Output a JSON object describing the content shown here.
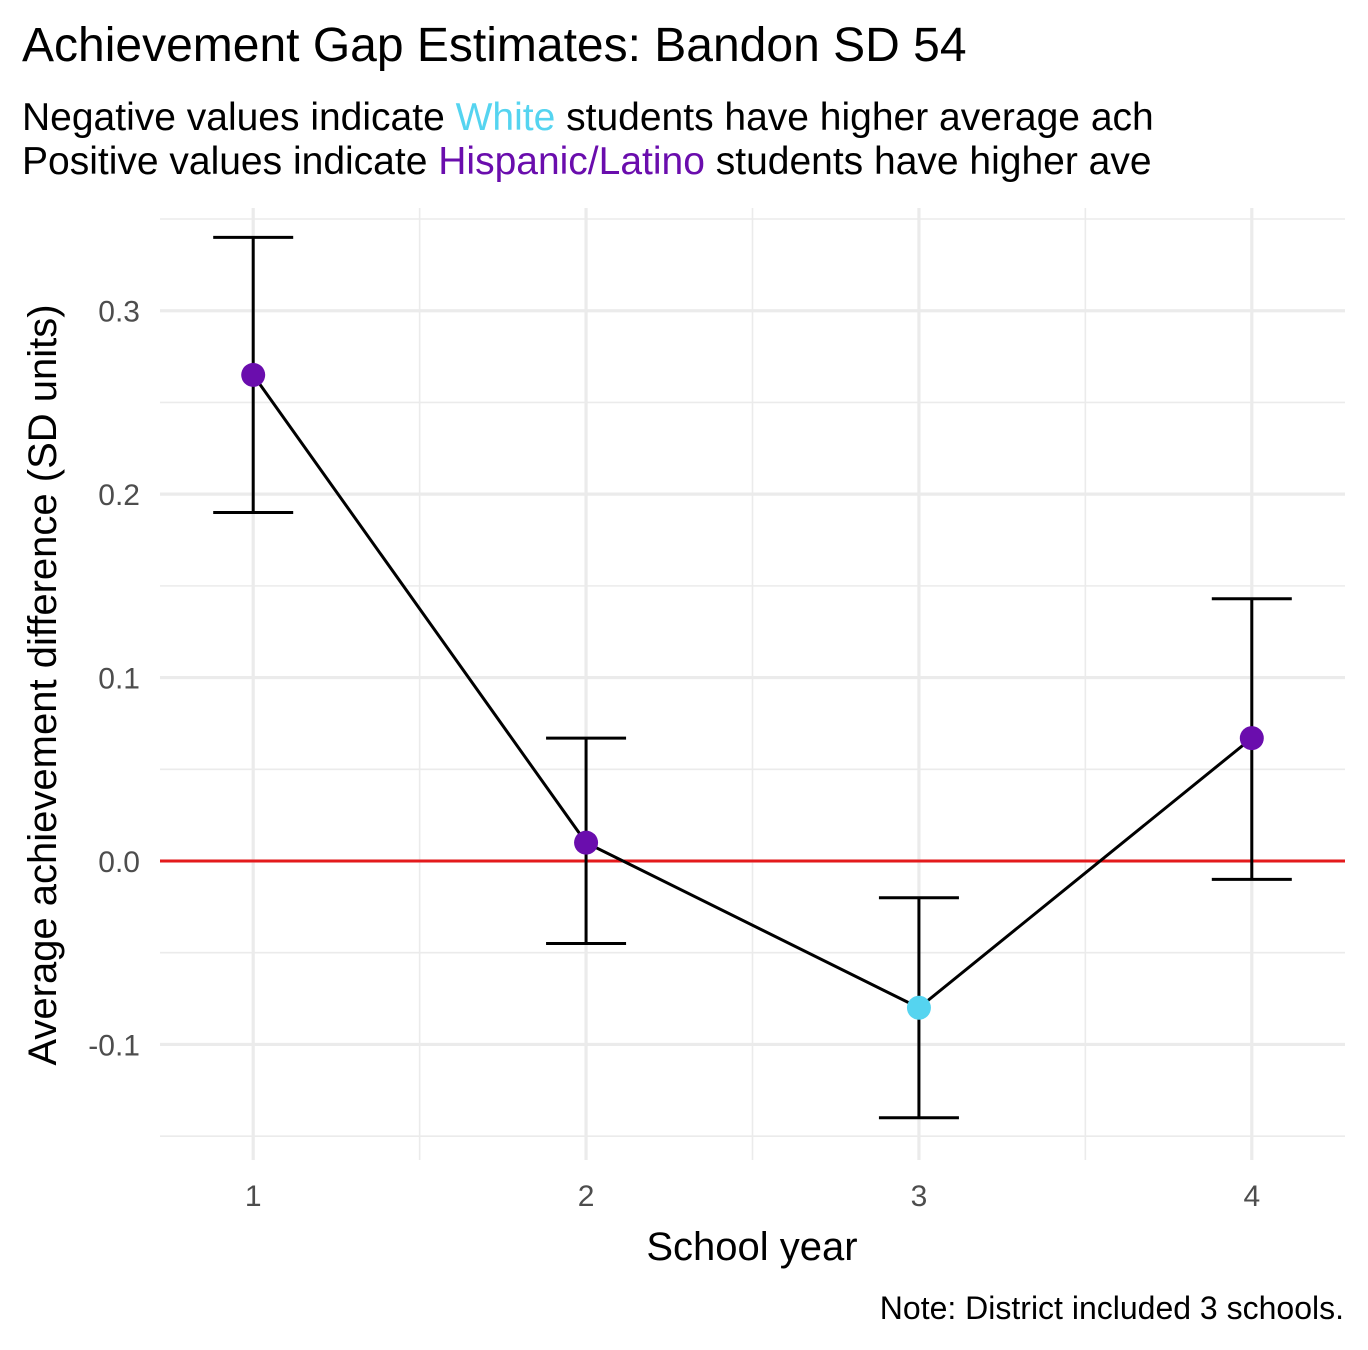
{
  "chart_data": {
    "type": "line",
    "title": "Achievement Gap Estimates: Bandon SD 54",
    "subtitle": {
      "line1": {
        "before": "Negative values indicate ",
        "group": "White",
        "after": " students have higher average ach"
      },
      "line2": {
        "before": "Positive values indicate ",
        "group": "Hispanic/Latino",
        "after": " students have higher ave"
      }
    },
    "xlabel": "School year",
    "ylabel": "Average achievement difference (SD units)",
    "note": "Note: District included 3 schools.",
    "x": [
      1,
      2,
      3,
      4
    ],
    "x_tick_labels": [
      "1",
      "2",
      "3",
      "4"
    ],
    "y_tick_labels": [
      "-0.1",
      "0.0",
      "0.1",
      "0.2",
      "0.3"
    ],
    "y_ticks": [
      -0.1,
      0.0,
      0.1,
      0.2,
      0.3
    ],
    "xlim": [
      0.72,
      4.28
    ],
    "ylim": [
      -0.163,
      0.356
    ],
    "grid": true,
    "reference_line": {
      "y": 0,
      "color": "#e41a1c"
    },
    "series": [
      {
        "values": [
          0.265,
          0.01,
          -0.08,
          0.067
        ],
        "lower": [
          0.19,
          -0.045,
          -0.14,
          -0.01
        ],
        "upper": [
          0.34,
          0.067,
          -0.02,
          0.143
        ]
      }
    ],
    "colors": {
      "positive": "#6a0dad",
      "negative": "#55d4f0",
      "line": "#000000",
      "grid": "#ebebeb"
    }
  }
}
